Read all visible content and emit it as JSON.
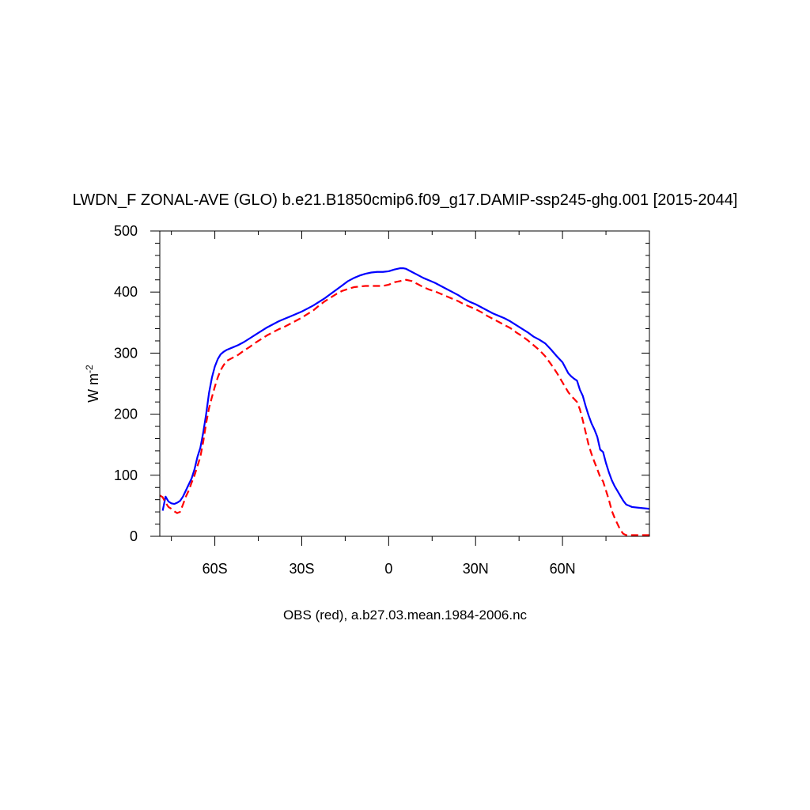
{
  "chart_data": {
    "type": "line",
    "title": "LWDN_F ZONAL-AVE (GLO) b.e21.B1850cmip6.f09_g17.DAMIP-ssp245-ghg.001 [2015-2044]",
    "ylabel": "W m",
    "ylabel_superscript": "-2",
    "caption": "OBS (red), a.b27.03.mean.1984-2006.nc",
    "xlim": [
      -79,
      90
    ],
    "ylim": [
      0,
      500
    ],
    "x_ticks": [
      {
        "value": -60,
        "label": "60S"
      },
      {
        "value": -30,
        "label": "30S"
      },
      {
        "value": 0,
        "label": "0"
      },
      {
        "value": 30,
        "label": "30N"
      },
      {
        "value": 60,
        "label": "60N"
      }
    ],
    "y_ticks": [
      {
        "value": 0,
        "label": "0"
      },
      {
        "value": 100,
        "label": "100"
      },
      {
        "value": 200,
        "label": "200"
      },
      {
        "value": 300,
        "label": "300"
      },
      {
        "value": 400,
        "label": "400"
      },
      {
        "value": 500,
        "label": "500"
      }
    ],
    "series": [
      {
        "color": "#0000ff",
        "dash": "solid",
        "points": [
          [
            -78,
            42
          ],
          [
            -77,
            65
          ],
          [
            -76,
            57
          ],
          [
            -75,
            54
          ],
          [
            -74,
            53
          ],
          [
            -73,
            55
          ],
          [
            -72,
            58
          ],
          [
            -71,
            65
          ],
          [
            -70,
            75
          ],
          [
            -69,
            85
          ],
          [
            -68,
            95
          ],
          [
            -67,
            110
          ],
          [
            -66,
            130
          ],
          [
            -65,
            145
          ],
          [
            -64,
            170
          ],
          [
            -63,
            200
          ],
          [
            -62,
            235
          ],
          [
            -61,
            260
          ],
          [
            -60,
            278
          ],
          [
            -59,
            290
          ],
          [
            -58,
            298
          ],
          [
            -57,
            302
          ],
          [
            -56,
            305
          ],
          [
            -54,
            309
          ],
          [
            -52,
            313
          ],
          [
            -50,
            318
          ],
          [
            -48,
            324
          ],
          [
            -46,
            330
          ],
          [
            -44,
            336
          ],
          [
            -42,
            342
          ],
          [
            -40,
            347
          ],
          [
            -38,
            352
          ],
          [
            -36,
            356
          ],
          [
            -34,
            360
          ],
          [
            -32,
            364
          ],
          [
            -30,
            368
          ],
          [
            -28,
            373
          ],
          [
            -26,
            378
          ],
          [
            -24,
            384
          ],
          [
            -22,
            390
          ],
          [
            -20,
            397
          ],
          [
            -18,
            404
          ],
          [
            -16,
            411
          ],
          [
            -14,
            418
          ],
          [
            -12,
            423
          ],
          [
            -10,
            427
          ],
          [
            -8,
            430
          ],
          [
            -6,
            432
          ],
          [
            -4,
            433
          ],
          [
            -2,
            433
          ],
          [
            0,
            434
          ],
          [
            2,
            437
          ],
          [
            4,
            439
          ],
          [
            5,
            439
          ],
          [
            6,
            438
          ],
          [
            8,
            433
          ],
          [
            10,
            428
          ],
          [
            12,
            423
          ],
          [
            14,
            419
          ],
          [
            16,
            415
          ],
          [
            18,
            410
          ],
          [
            20,
            405
          ],
          [
            22,
            400
          ],
          [
            24,
            395
          ],
          [
            26,
            389
          ],
          [
            28,
            384
          ],
          [
            30,
            380
          ],
          [
            32,
            375
          ],
          [
            34,
            370
          ],
          [
            36,
            365
          ],
          [
            38,
            361
          ],
          [
            40,
            357
          ],
          [
            42,
            352
          ],
          [
            44,
            346
          ],
          [
            46,
            340
          ],
          [
            48,
            334
          ],
          [
            50,
            327
          ],
          [
            52,
            322
          ],
          [
            54,
            316
          ],
          [
            56,
            306
          ],
          [
            58,
            295
          ],
          [
            60,
            285
          ],
          [
            61,
            276
          ],
          [
            62,
            267
          ],
          [
            63,
            262
          ],
          [
            64,
            258
          ],
          [
            65,
            255
          ],
          [
            66,
            240
          ],
          [
            67,
            230
          ],
          [
            68,
            213
          ],
          [
            69,
            198
          ],
          [
            70,
            185
          ],
          [
            71,
            175
          ],
          [
            72,
            163
          ],
          [
            73,
            142
          ],
          [
            74,
            138
          ],
          [
            75,
            120
          ],
          [
            76,
            105
          ],
          [
            77,
            92
          ],
          [
            78,
            82
          ],
          [
            79,
            74
          ],
          [
            80,
            66
          ],
          [
            81,
            58
          ],
          [
            82,
            52
          ],
          [
            83,
            50
          ],
          [
            84,
            48
          ],
          [
            86,
            47
          ],
          [
            88,
            46
          ],
          [
            90,
            45
          ]
        ]
      },
      {
        "color": "#ff0000",
        "dash": "dashed",
        "points": [
          [
            -79,
            67
          ],
          [
            -78,
            64
          ],
          [
            -77,
            55
          ],
          [
            -76,
            48
          ],
          [
            -75,
            45
          ],
          [
            -74,
            41
          ],
          [
            -73,
            38
          ],
          [
            -72,
            40
          ],
          [
            -71,
            52
          ],
          [
            -70,
            65
          ],
          [
            -69,
            75
          ],
          [
            -68,
            88
          ],
          [
            -67,
            100
          ],
          [
            -66,
            115
          ],
          [
            -65,
            130
          ],
          [
            -64,
            155
          ],
          [
            -63,
            185
          ],
          [
            -62,
            210
          ],
          [
            -61,
            228
          ],
          [
            -60,
            245
          ],
          [
            -59,
            260
          ],
          [
            -58,
            272
          ],
          [
            -57,
            280
          ],
          [
            -56,
            287
          ],
          [
            -54,
            292
          ],
          [
            -52,
            297
          ],
          [
            -50,
            304
          ],
          [
            -48,
            310
          ],
          [
            -46,
            317
          ],
          [
            -44,
            323
          ],
          [
            -42,
            329
          ],
          [
            -40,
            334
          ],
          [
            -38,
            339
          ],
          [
            -36,
            343
          ],
          [
            -34,
            348
          ],
          [
            -32,
            353
          ],
          [
            -30,
            358
          ],
          [
            -28,
            364
          ],
          [
            -26,
            370
          ],
          [
            -24,
            378
          ],
          [
            -22,
            385
          ],
          [
            -20,
            391
          ],
          [
            -18,
            397
          ],
          [
            -16,
            402
          ],
          [
            -14,
            405
          ],
          [
            -12,
            408
          ],
          [
            -10,
            409
          ],
          [
            -8,
            410
          ],
          [
            -6,
            410
          ],
          [
            -4,
            410
          ],
          [
            -2,
            410
          ],
          [
            0,
            412
          ],
          [
            2,
            416
          ],
          [
            4,
            418
          ],
          [
            6,
            420
          ],
          [
            8,
            418
          ],
          [
            10,
            413
          ],
          [
            12,
            408
          ],
          [
            14,
            404
          ],
          [
            16,
            401
          ],
          [
            18,
            397
          ],
          [
            20,
            393
          ],
          [
            22,
            389
          ],
          [
            24,
            385
          ],
          [
            26,
            380
          ],
          [
            28,
            376
          ],
          [
            30,
            372
          ],
          [
            32,
            367
          ],
          [
            34,
            361
          ],
          [
            36,
            356
          ],
          [
            38,
            351
          ],
          [
            40,
            346
          ],
          [
            42,
            341
          ],
          [
            44,
            334
          ],
          [
            46,
            328
          ],
          [
            48,
            321
          ],
          [
            50,
            313
          ],
          [
            52,
            305
          ],
          [
            54,
            295
          ],
          [
            56,
            282
          ],
          [
            58,
            268
          ],
          [
            60,
            252
          ],
          [
            61,
            244
          ],
          [
            62,
            236
          ],
          [
            63,
            230
          ],
          [
            64,
            225
          ],
          [
            65,
            220
          ],
          [
            66,
            208
          ],
          [
            67,
            190
          ],
          [
            68,
            170
          ],
          [
            69,
            150
          ],
          [
            70,
            135
          ],
          [
            71,
            122
          ],
          [
            72,
            110
          ],
          [
            73,
            97
          ],
          [
            74,
            90
          ],
          [
            75,
            75
          ],
          [
            76,
            60
          ],
          [
            77,
            42
          ],
          [
            78,
            30
          ],
          [
            79,
            20
          ],
          [
            80,
            10
          ],
          [
            81,
            4
          ],
          [
            82,
            2
          ],
          [
            84,
            2
          ],
          [
            86,
            2
          ],
          [
            88,
            2
          ],
          [
            90,
            2
          ]
        ]
      }
    ]
  }
}
